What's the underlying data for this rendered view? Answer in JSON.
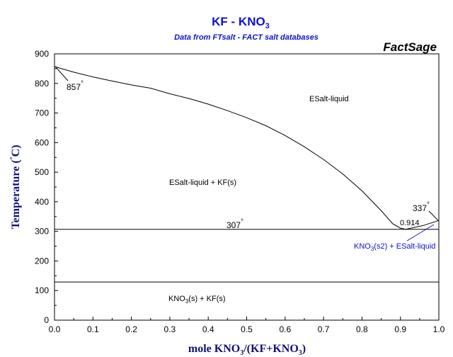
{
  "header": {
    "title_main": "KF - KNO",
    "title_sub": "3",
    "subtitle": "Data from FTsalt - FACT salt databases",
    "brand": "FactSage"
  },
  "chart_data": {
    "type": "line",
    "title": "KF - KNO3",
    "subtitle": "Data from FTsalt - FACT salt databases",
    "xlabel": "mole KNO3/(KF+KNO3)",
    "ylabel": "Temperature (°C)",
    "xlim": [
      0,
      1
    ],
    "ylim": [
      0,
      900
    ],
    "x_ticks": [
      "0.0",
      "0.1",
      "0.2",
      "0.3",
      "0.4",
      "0.5",
      "0.6",
      "0.7",
      "0.8",
      "0.9",
      "1.0"
    ],
    "y_ticks": [
      "0",
      "100",
      "200",
      "300",
      "400",
      "500",
      "600",
      "700",
      "800",
      "900"
    ],
    "grid": false,
    "series": [
      {
        "kind": "liquidus-KF",
        "x": [
          0,
          0.05,
          0.1,
          0.15,
          0.2,
          0.25,
          0.3,
          0.35,
          0.4,
          0.45,
          0.5,
          0.55,
          0.6,
          0.65,
          0.7,
          0.75,
          0.8,
          0.85,
          0.88,
          0.9,
          0.914
        ],
        "y": [
          857,
          838,
          822,
          808,
          795,
          784,
          765,
          749,
          730,
          708,
          684,
          657,
          624,
          586,
          543,
          494,
          437,
          370,
          326,
          311,
          307
        ]
      },
      {
        "kind": "liquidus-KNO3",
        "x": [
          0.914,
          0.96,
          1.0
        ],
        "y": [
          307,
          320,
          337
        ]
      },
      {
        "kind": "eutectic-line",
        "x": [
          0,
          1
        ],
        "y": [
          307,
          307
        ]
      },
      {
        "kind": "transition-line",
        "x": [
          0,
          1
        ],
        "y": [
          129,
          129
        ]
      }
    ],
    "annotations": {
      "kf_melt": {
        "text": "857",
        "deg": "°",
        "x": 0.0,
        "y": 857
      },
      "eutectic_temp": {
        "text": "307",
        "deg": "°"
      },
      "eutectic_comp": {
        "text": "0.914"
      },
      "kno3_melt": {
        "text": "337",
        "deg": "°",
        "x": 1.0,
        "y": 337
      }
    },
    "regions": {
      "liquid": "ESalt-liquid",
      "liquid_kf": "ESalt-liquid + KF(s)",
      "kno3s2_liquid_a": "KNO",
      "kno3s2_liquid_sub": "3",
      "kno3s2_liquid_b": "(s2) + ESalt-liquid",
      "kno3s_kf_a": "KNO",
      "kno3s_kf_sub": "3",
      "kno3s_kf_b": "(s) + KF(s)"
    },
    "axis_label_parts": {
      "x_a": "mole KNO",
      "x_sub1": "3",
      "x_b": "/(KF+KNO",
      "x_sub2": "3",
      "x_c": ")",
      "y_a": "Temperature (",
      "y_deg": "°",
      "y_b": "C)"
    }
  }
}
